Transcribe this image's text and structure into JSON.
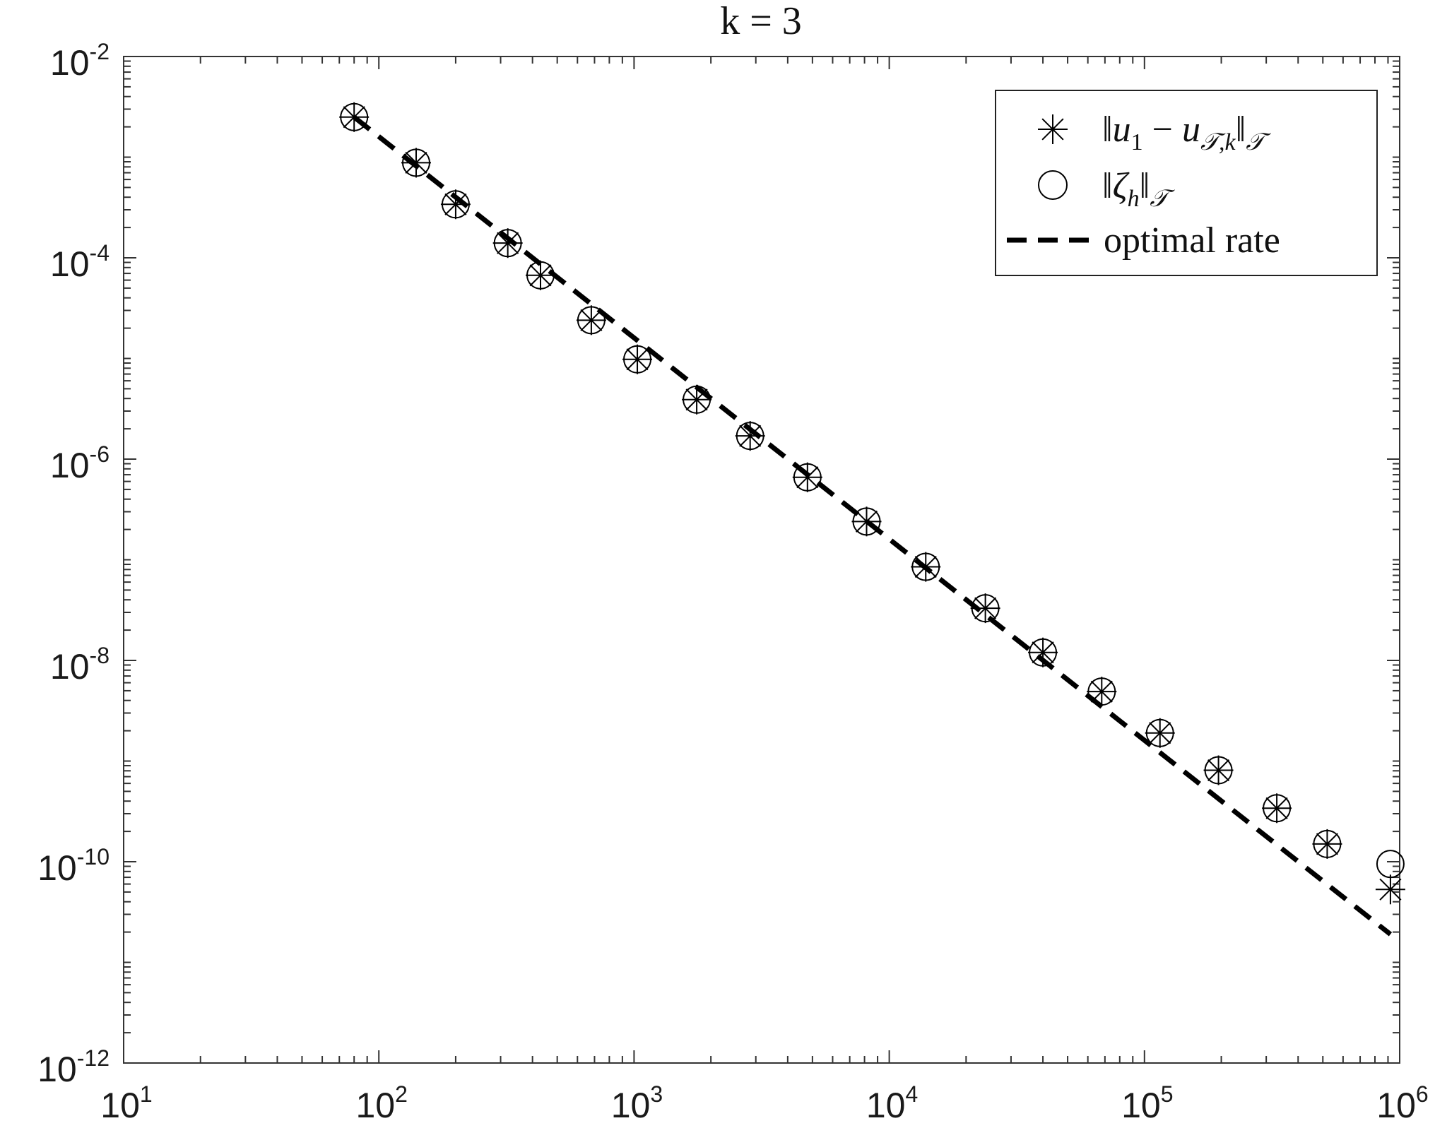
{
  "chart_data": {
    "type": "scatter",
    "title": "k = 3",
    "xlabel": "",
    "ylabel": "",
    "xscale": "log",
    "yscale": "log",
    "xlim": [
      10,
      1000000
    ],
    "ylim": [
      1e-12,
      0.01
    ],
    "grid": false,
    "legend_position": "top-right",
    "x_ticks": [
      {
        "base": "10",
        "exp": "1"
      },
      {
        "base": "10",
        "exp": "2"
      },
      {
        "base": "10",
        "exp": "3"
      },
      {
        "base": "10",
        "exp": "4"
      },
      {
        "base": "10",
        "exp": "5"
      },
      {
        "base": "10",
        "exp": "6"
      }
    ],
    "y_ticks": [
      {
        "base": "10",
        "exp": "-2"
      },
      {
        "base": "10",
        "exp": "-4"
      },
      {
        "base": "10",
        "exp": "-6"
      },
      {
        "base": "10",
        "exp": "-8"
      },
      {
        "base": "10",
        "exp": "-10"
      },
      {
        "base": "10",
        "exp": "-12"
      }
    ],
    "x": [
      80,
      140,
      200,
      320,
      430,
      680,
      1030,
      1760,
      2850,
      4780,
      8150,
      13900,
      23800,
      40000,
      68000,
      115000,
      195000,
      330000,
      520000,
      920000
    ],
    "series": [
      {
        "key": "error",
        "marker": "asterisk",
        "legend_label": "‖u₁ − u_{𝒯,k}‖_𝒯",
        "values": [
          0.0025,
          0.00088,
          0.00034,
          0.00014,
          6.7e-05,
          2.4e-05,
          9.8e-06,
          3.9e-06,
          1.7e-06,
          6.6e-07,
          2.4e-07,
          8.5e-08,
          3.3e-08,
          1.2e-08,
          4.9e-09,
          1.9e-09,
          8.1e-10,
          3.4e-10,
          1.5e-10,
          5.3e-11
        ]
      },
      {
        "key": "estimator",
        "marker": "circle",
        "legend_label": "‖ζ_h‖_𝒯",
        "values": [
          0.0025,
          0.00088,
          0.00034,
          0.00014,
          6.7e-05,
          2.4e-05,
          9.8e-06,
          3.9e-06,
          1.7e-06,
          6.6e-07,
          2.4e-07,
          8.5e-08,
          3.3e-08,
          1.2e-08,
          4.9e-09,
          1.9e-09,
          8.1e-10,
          3.4e-10,
          1.5e-10,
          9.5e-11
        ]
      },
      {
        "key": "optimal_rate",
        "line": "dashed",
        "legend_label": "optimal rate",
        "x": [
          80,
          920000
        ],
        "values": [
          0.0025,
          1.9e-11
        ]
      }
    ],
    "legend": {
      "optimal_rate": "optimal rate"
    },
    "colors": {
      "ink": "#000000",
      "axis": "#333333",
      "background": "#ffffff"
    }
  }
}
